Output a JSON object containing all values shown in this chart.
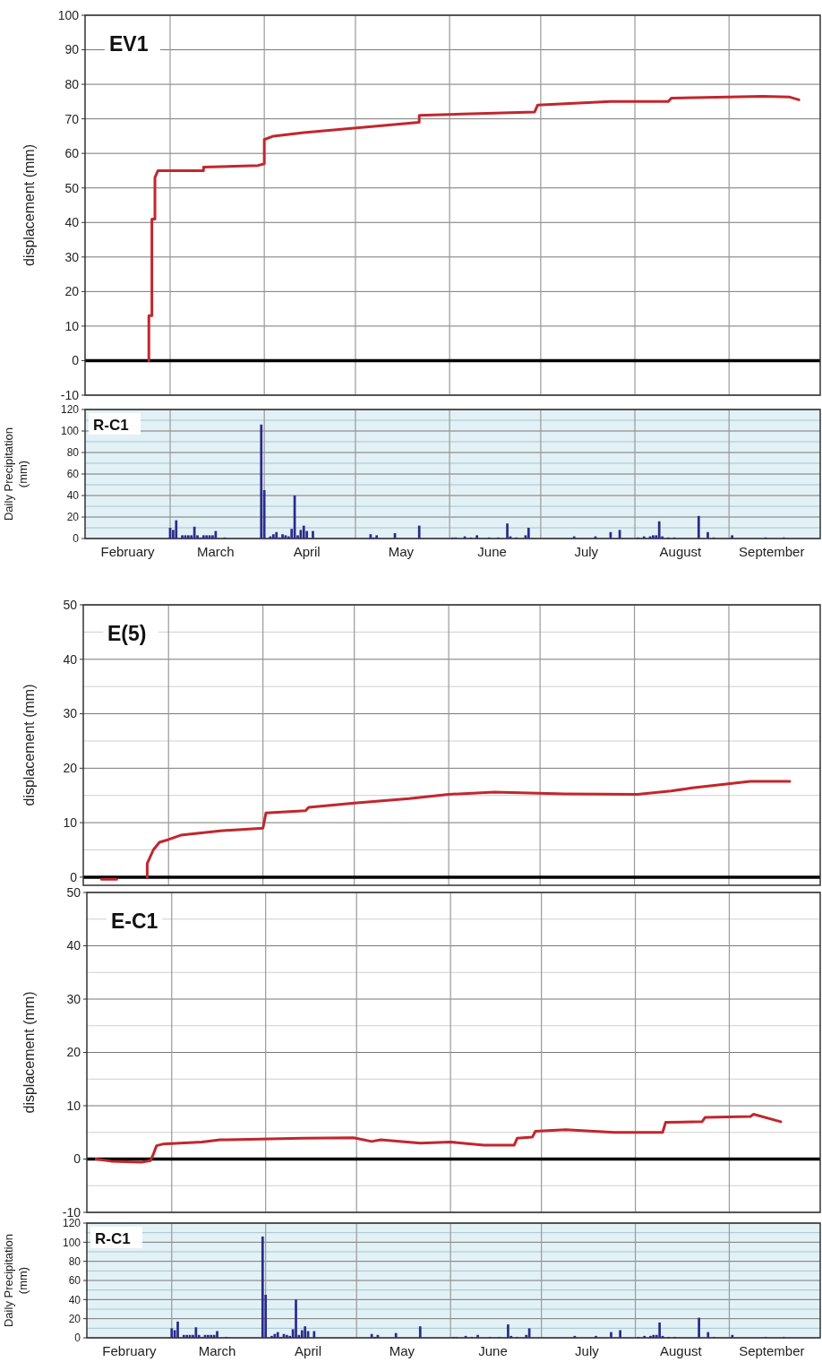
{
  "chart_data": [
    {
      "type": "line",
      "title": "EV1",
      "ylabel": "displacement  (mm)",
      "xlim": [
        "--02-01",
        "--10-01"
      ],
      "ylim": [
        -10,
        100
      ],
      "yticks": [
        -10,
        0,
        10,
        20,
        30,
        40,
        50,
        60,
        70,
        80,
        90,
        100
      ],
      "xticks": [
        {
          "value": "--03-01",
          "label": null
        },
        {
          "value": "--04-01",
          "label": null
        },
        {
          "value": "--05-01",
          "label": null
        },
        {
          "value": "--06-01",
          "label": null
        },
        {
          "value": "--07-01",
          "label": null
        },
        {
          "value": "--08-01",
          "label": null
        },
        {
          "value": "--09-01",
          "label": null
        }
      ],
      "tick_labels": "y",
      "grid": true,
      "ref_lines": [
        {
          "axis": "y",
          "value": 0,
          "color": "#000000"
        }
      ],
      "series": [
        {
          "color": "#c1272d",
          "x": [
            "--02-22",
            "--02-22",
            "--02-23",
            "--02-23",
            "--02-24",
            "--02-24",
            "--02-25",
            "--03-12",
            "--03-12",
            "--03-30",
            "--04-01",
            "--04-01",
            "--04-04",
            "--04-14",
            "--05-22",
            "--05-22",
            "--06-29",
            "--06-30",
            "--07-24",
            "--08-12",
            "--08-13",
            "--09-12",
            "--09-21",
            "--09-24"
          ],
          "values": [
            0,
            13,
            13,
            41,
            41,
            53,
            55,
            55,
            56,
            56.5,
            57,
            64,
            65,
            66,
            69,
            71,
            72,
            74,
            75,
            75,
            76,
            76.5,
            76.3,
            75.5
          ]
        }
      ]
    },
    {
      "type": "bar",
      "title": "R-C1",
      "ylabel": "Daily Precipitation\n(mm)",
      "xlim": [
        "--02-01",
        "--10-01"
      ],
      "ylim": [
        0,
        120
      ],
      "yticks": [
        0,
        {
          "value": 10,
          "label": null
        },
        20,
        {
          "value": 30,
          "label": null
        },
        40,
        {
          "value": 50,
          "label": null
        },
        60,
        {
          "value": 70,
          "label": null
        },
        80,
        {
          "value": 90,
          "label": null
        },
        100,
        {
          "value": 110,
          "label": null
        },
        120
      ],
      "xticks": [
        {
          "value": "--02-15",
          "label": "February"
        },
        {
          "value": "--03-01",
          "label": null
        },
        {
          "value": "--03-16",
          "label": "March"
        },
        {
          "value": "--04-01",
          "label": null
        },
        {
          "value": "--04-15",
          "label": "April"
        },
        {
          "value": "--05-01",
          "label": null
        },
        {
          "value": "--05-16",
          "label": "May"
        },
        {
          "value": "--06-01",
          "label": null
        },
        {
          "value": "--06-15",
          "label": "June"
        },
        {
          "value": "--07-01",
          "label": null
        },
        {
          "value": "--07-16",
          "label": "July"
        },
        {
          "value": "--08-01",
          "label": null
        },
        {
          "value": "--08-16",
          "label": "August"
        },
        {
          "value": "--09-01",
          "label": null
        },
        {
          "value": "--09-15",
          "label": "September"
        }
      ],
      "grid": true,
      "series": [
        {
          "color": "#2b2b8c",
          "x": [
            "--03-01",
            "--03-02",
            "--03-03",
            "--03-05",
            "--03-06",
            "--03-07",
            "--03-08",
            "--03-09",
            "--03-10",
            "--03-11",
            "--03-12",
            "--03-13",
            "--03-14",
            "--03-15",
            "--03-16",
            "--03-19",
            "--03-31",
            "--04-01",
            "--04-03",
            "--04-04",
            "--04-05",
            "--04-06",
            "--04-07",
            "--04-08",
            "--04-09",
            "--04-10",
            "--04-11",
            "--04-12",
            "--04-13",
            "--04-14",
            "--04-15",
            "--04-17",
            "--05-06",
            "--05-07",
            "--05-08",
            "--05-14",
            "--05-22",
            "--06-02",
            "--06-03",
            "--06-06",
            "--06-08",
            "--06-10",
            "--06-14",
            "--06-17",
            "--06-20",
            "--06-21",
            "--06-23",
            "--06-26",
            "--06-27",
            "--07-12",
            "--07-19",
            "--07-24",
            "--07-27",
            "--08-02",
            "--08-04",
            "--08-06",
            "--08-07",
            "--08-08",
            "--08-09",
            "--08-10",
            "--08-12",
            "--08-14",
            "--08-22",
            "--08-25",
            "--08-27",
            "--09-02",
            "--09-13",
            "--09-19"
          ],
          "values": [
            10,
            8,
            17,
            3,
            3,
            3,
            3,
            11,
            3,
            1,
            3,
            3,
            3,
            3,
            7,
            1,
            106,
            45,
            2,
            4,
            6,
            1,
            4,
            3,
            2,
            9,
            40,
            3,
            8,
            12,
            7,
            7,
            4,
            1,
            3,
            5,
            12,
            1,
            1,
            2,
            1,
            3,
            1,
            1,
            14,
            2,
            1,
            3,
            10,
            2,
            2,
            6,
            8,
            1,
            2,
            2,
            3,
            3,
            16,
            2,
            1,
            1,
            21,
            6,
            1,
            3,
            1,
            1
          ]
        }
      ]
    },
    {
      "type": "line",
      "title": "E(5)",
      "ylabel": "displacement  (mm)",
      "xlim": [
        "--02-01",
        "--10-01"
      ],
      "ylim": [
        -1.5,
        50
      ],
      "yticks": [
        0,
        {
          "value": 5,
          "label": null
        },
        10,
        {
          "value": 15,
          "label": null
        },
        20,
        {
          "value": 25,
          "label": null
        },
        30,
        {
          "value": 35,
          "label": null
        },
        40,
        {
          "value": 45,
          "label": null
        },
        50
      ],
      "xticks": [
        {
          "value": "--03-01",
          "label": null
        },
        {
          "value": "--04-01",
          "label": null
        },
        {
          "value": "--05-01",
          "label": null
        },
        {
          "value": "--06-01",
          "label": null
        },
        {
          "value": "--07-01",
          "label": null
        },
        {
          "value": "--08-01",
          "label": null
        },
        {
          "value": "--09-01",
          "label": null
        }
      ],
      "tick_labels": "y",
      "grid": true,
      "ref_lines": [
        {
          "axis": "y",
          "value": 0,
          "color": "#000000"
        }
      ],
      "series": [
        {
          "color": "#c1272d",
          "x": [
            "--02-07",
            "--02-12",
            "--02-15",
            "--02-22",
            "--02-22",
            "--02-24",
            "--02-26",
            "--03-01",
            "--03-05",
            "--03-18",
            "--04-01",
            "--04-02",
            "--04-15",
            "--04-16",
            "--05-01",
            "--05-19",
            "--06-01",
            "--06-16",
            "--07-09",
            "--08-02",
            "--08-13",
            "--08-20",
            "--09-08",
            "--09-21"
          ],
          "values": [
            -0.4,
            -0.4,
            null,
            0,
            2.5,
            5,
            6.4,
            6.9,
            7.7,
            8.5,
            9,
            11.8,
            12.2,
            12.8,
            13.6,
            14.4,
            15.2,
            15.6,
            15.3,
            15.2,
            15.8,
            16.4,
            17.6,
            17.6
          ]
        }
      ]
    },
    {
      "type": "line",
      "title": "E-C1",
      "ylabel": "displacement  (mm)",
      "xlim": [
        "--02-01",
        "--10-01"
      ],
      "ylim": [
        -10,
        50
      ],
      "yticks": [
        -10,
        {
          "value": -5,
          "label": null
        },
        0,
        {
          "value": 5,
          "label": null
        },
        10,
        {
          "value": 15,
          "label": null
        },
        20,
        {
          "value": 25,
          "label": null
        },
        30,
        {
          "value": 35,
          "label": null
        },
        40,
        {
          "value": 45,
          "label": null
        },
        50
      ],
      "xticks": [
        {
          "value": "--03-01",
          "label": null
        },
        {
          "value": "--04-01",
          "label": null
        },
        {
          "value": "--05-01",
          "label": null
        },
        {
          "value": "--06-01",
          "label": null
        },
        {
          "value": "--07-01",
          "label": null
        },
        {
          "value": "--08-01",
          "label": null
        },
        {
          "value": "--09-01",
          "label": null
        }
      ],
      "tick_labels": "y",
      "grid": true,
      "ref_lines": [
        {
          "axis": "y",
          "value": 0,
          "color": "#000000"
        }
      ],
      "series": [
        {
          "color": "#c1272d",
          "x": [
            "--02-04",
            "--02-09",
            "--02-19",
            "--02-22",
            "--02-23",
            "--02-24",
            "--02-26",
            "--03-11",
            "--03-17",
            "--04-13",
            "--04-30",
            "--05-06",
            "--05-09",
            "--05-22",
            "--06-01",
            "--06-12",
            "--06-22",
            "--06-23",
            "--06-28",
            "--06-29",
            "--07-09",
            "--07-25",
            "--08-10",
            "--08-11",
            "--08-23",
            "--08-24",
            "--09-08",
            "--09-09",
            "--09-18"
          ],
          "values": [
            0,
            -0.4,
            -0.6,
            -0.3,
            1,
            2.5,
            2.8,
            3.2,
            3.6,
            3.9,
            4,
            3.3,
            3.6,
            3,
            3.2,
            2.6,
            2.6,
            3.9,
            4.1,
            5.2,
            5.5,
            5,
            5,
            6.9,
            7,
            7.8,
            8,
            8.4,
            7
          ]
        }
      ]
    },
    {
      "type": "bar",
      "title": "R-C1",
      "ylabel": "Daily Precipitation\n(mm)",
      "xlim": [
        "--02-01",
        "--10-01"
      ],
      "ylim": [
        0,
        120
      ],
      "yticks": [
        0,
        {
          "value": 10,
          "label": null
        },
        20,
        {
          "value": 30,
          "label": null
        },
        40,
        {
          "value": 50,
          "label": null
        },
        60,
        {
          "value": 70,
          "label": null
        },
        80,
        {
          "value": 90,
          "label": null
        },
        100,
        {
          "value": 110,
          "label": null
        },
        120
      ],
      "xticks": [
        {
          "value": "--02-15",
          "label": "February"
        },
        {
          "value": "--03-01",
          "label": null
        },
        {
          "value": "--03-16",
          "label": "March"
        },
        {
          "value": "--04-01",
          "label": null
        },
        {
          "value": "--04-15",
          "label": "April"
        },
        {
          "value": "--05-01",
          "label": null
        },
        {
          "value": "--05-16",
          "label": "May"
        },
        {
          "value": "--06-01",
          "label": null
        },
        {
          "value": "--06-15",
          "label": "June"
        },
        {
          "value": "--07-01",
          "label": null
        },
        {
          "value": "--07-16",
          "label": "July"
        },
        {
          "value": "--08-01",
          "label": null
        },
        {
          "value": "--08-16",
          "label": "August"
        },
        {
          "value": "--09-01",
          "label": null
        },
        {
          "value": "--09-15",
          "label": "September"
        }
      ],
      "grid": true,
      "series": [
        {
          "color": "#2b2b8c",
          "x": [
            "--03-01",
            "--03-02",
            "--03-03",
            "--03-05",
            "--03-06",
            "--03-07",
            "--03-08",
            "--03-09",
            "--03-10",
            "--03-11",
            "--03-12",
            "--03-13",
            "--03-14",
            "--03-15",
            "--03-16",
            "--03-19",
            "--03-31",
            "--04-01",
            "--04-03",
            "--04-04",
            "--04-05",
            "--04-06",
            "--04-07",
            "--04-08",
            "--04-09",
            "--04-10",
            "--04-11",
            "--04-12",
            "--04-13",
            "--04-14",
            "--04-15",
            "--04-17",
            "--05-06",
            "--05-07",
            "--05-08",
            "--05-14",
            "--05-22",
            "--06-02",
            "--06-03",
            "--06-06",
            "--06-08",
            "--06-10",
            "--06-14",
            "--06-17",
            "--06-20",
            "--06-21",
            "--06-23",
            "--06-26",
            "--06-27",
            "--07-12",
            "--07-19",
            "--07-24",
            "--07-27",
            "--08-02",
            "--08-04",
            "--08-06",
            "--08-07",
            "--08-08",
            "--08-09",
            "--08-10",
            "--08-12",
            "--08-14",
            "--08-22",
            "--08-25",
            "--08-27",
            "--09-02",
            "--09-13",
            "--09-19"
          ],
          "values": [
            10,
            8,
            17,
            3,
            3,
            3,
            3,
            11,
            3,
            1,
            3,
            3,
            3,
            3,
            7,
            1,
            106,
            45,
            2,
            4,
            6,
            1,
            4,
            3,
            2,
            9,
            40,
            3,
            8,
            12,
            7,
            7,
            4,
            1,
            3,
            5,
            12,
            1,
            1,
            2,
            1,
            3,
            1,
            1,
            14,
            2,
            1,
            3,
            10,
            2,
            2,
            6,
            8,
            1,
            2,
            2,
            3,
            3,
            16,
            2,
            1,
            1,
            21,
            6,
            1,
            3,
            1,
            1
          ]
        }
      ]
    }
  ]
}
